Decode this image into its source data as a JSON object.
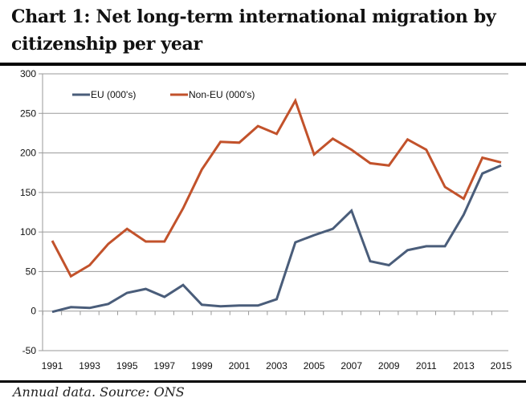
{
  "title": "Chart 1: Net long-term international migration by citizenship per year",
  "caption": "Annual data. Source: ONS",
  "chart_data": {
    "type": "line",
    "title": "Chart 1: Net long-term international migration by citizenship per year",
    "xlabel": "",
    "ylabel": "",
    "x": [
      1991,
      1992,
      1993,
      1994,
      1995,
      1996,
      1997,
      1998,
      1999,
      2000,
      2001,
      2002,
      2003,
      2004,
      2005,
      2006,
      2007,
      2008,
      2009,
      2010,
      2011,
      2012,
      2013,
      2014,
      2015
    ],
    "x_tick_labels": [
      "1991",
      "1993",
      "1995",
      "1997",
      "1999",
      "2001",
      "2003",
      "2005",
      "2007",
      "2009",
      "2011",
      "2013",
      "2015"
    ],
    "y_ticks": [
      -50,
      0,
      50,
      100,
      150,
      200,
      250,
      300
    ],
    "ylim": [
      -50,
      300
    ],
    "grid": true,
    "legend_position": "top-left",
    "series": [
      {
        "name": "EU (000's)",
        "color": "#4a5d7a",
        "values": [
          -1,
          5,
          4,
          9,
          23,
          28,
          18,
          33,
          8,
          6,
          7,
          7,
          15,
          87,
          96,
          104,
          127,
          63,
          58,
          77,
          82,
          82,
          122,
          174,
          184
        ]
      },
      {
        "name": "Non-EU (000's)",
        "color": "#c2522b",
        "values": [
          89,
          44,
          58,
          85,
          104,
          88,
          88,
          130,
          179,
          214,
          213,
          234,
          224,
          266,
          198,
          218,
          204,
          187,
          184,
          217,
          204,
          157,
          142,
          194,
          188
        ]
      }
    ]
  }
}
